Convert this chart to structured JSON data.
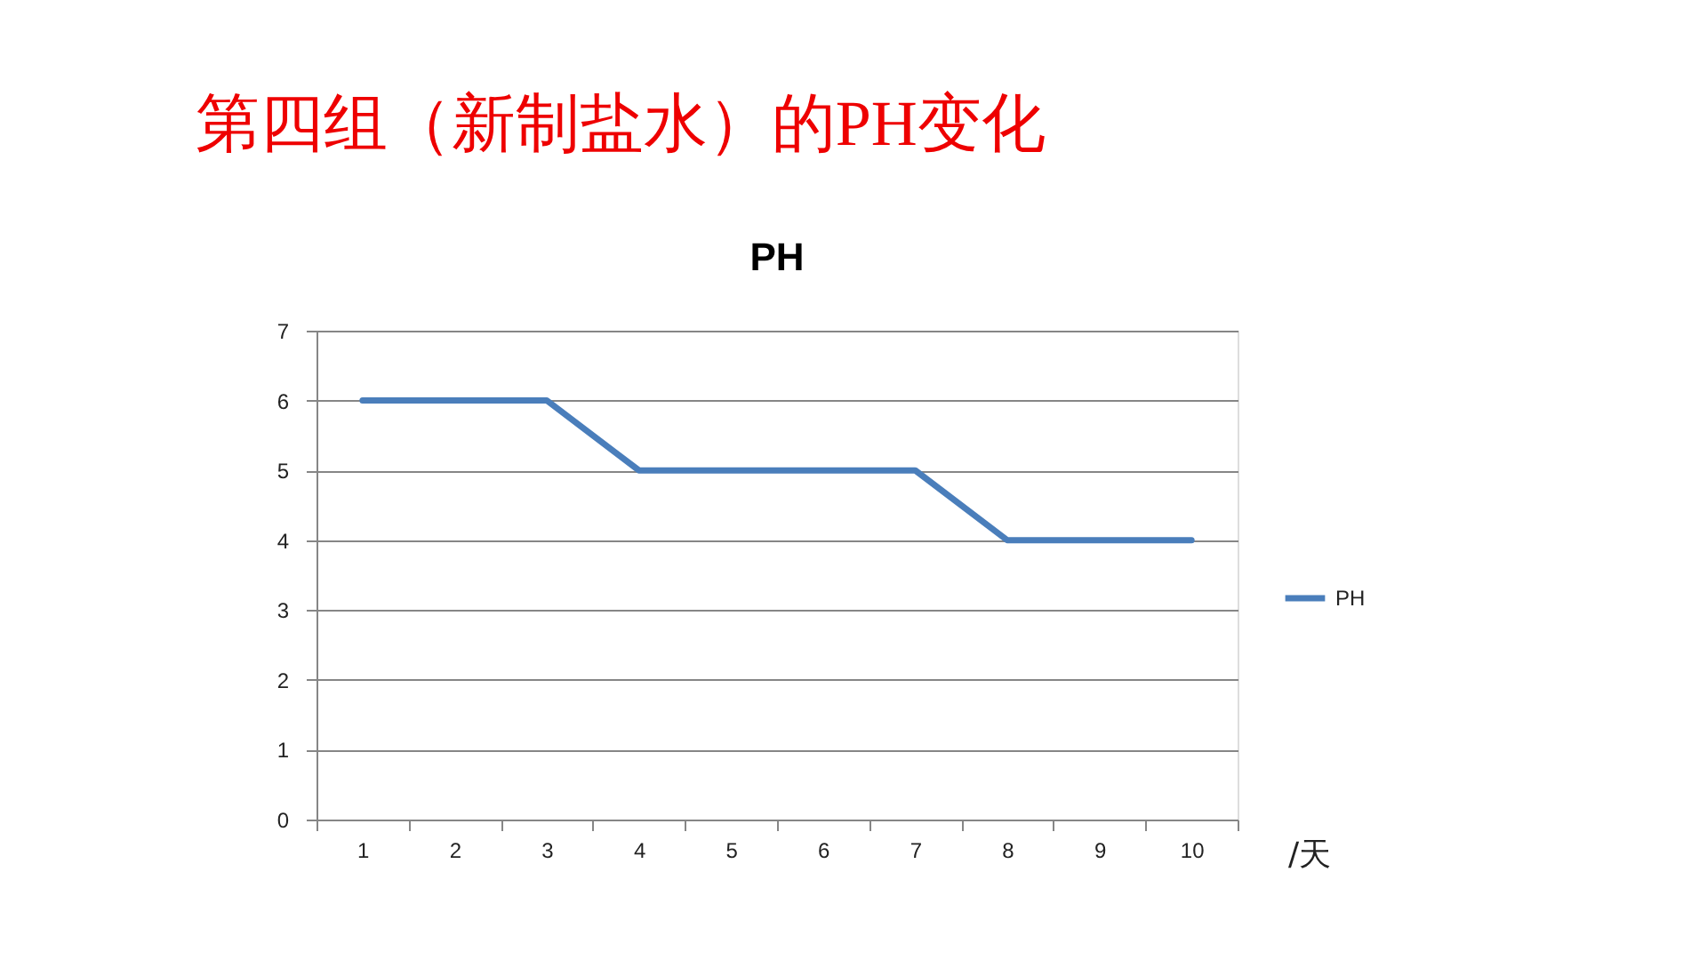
{
  "chart_data": {
    "type": "line",
    "title": "第四组（新制盐水）的PH变化",
    "subtitle": "PH",
    "xlabel": "/天",
    "categories": [
      "1",
      "2",
      "3",
      "4",
      "5",
      "6",
      "7",
      "8",
      "9",
      "10"
    ],
    "series": [
      {
        "name": "PH",
        "color": "#4a7ebb",
        "values": [
          6,
          6,
          6,
          5,
          5,
          5,
          5,
          4,
          4,
          4
        ]
      }
    ],
    "ylim": [
      0,
      7
    ],
    "yticks": [
      0,
      1,
      2,
      3,
      4,
      5,
      6,
      7
    ],
    "grid": "y",
    "legend": "right",
    "marker": "none",
    "line_style": "solid"
  }
}
